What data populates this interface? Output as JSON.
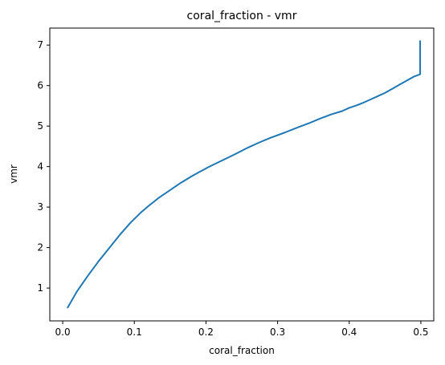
{
  "chart_data": {
    "type": "line",
    "title": "coral_fraction - vmr",
    "xlabel": "coral_fraction",
    "ylabel": "vmr",
    "xlim": [
      -0.018,
      0.518
    ],
    "ylim": [
      0.19,
      7.42
    ],
    "x_ticks": [
      0.0,
      0.1,
      0.2,
      0.3,
      0.4,
      0.5
    ],
    "x_tick_labels": [
      "0.0",
      "0.1",
      "0.2",
      "0.3",
      "0.4",
      "0.5"
    ],
    "y_ticks": [
      1,
      2,
      3,
      4,
      5,
      6,
      7
    ],
    "y_tick_labels": [
      "1",
      "2",
      "3",
      "4",
      "5",
      "6",
      "7"
    ],
    "grid": false,
    "series": [
      {
        "color": "#1f77b4",
        "x": [
          0.007,
          0.02,
          0.035,
          0.05,
          0.065,
          0.08,
          0.095,
          0.11,
          0.12,
          0.135,
          0.15,
          0.165,
          0.18,
          0.19,
          0.205,
          0.22,
          0.24,
          0.26,
          0.275,
          0.29,
          0.31,
          0.33,
          0.345,
          0.36,
          0.375,
          0.39,
          0.4,
          0.41,
          0.42,
          0.43,
          0.44,
          0.45,
          0.46,
          0.47,
          0.48,
          0.49,
          0.499,
          0.499,
          0.499,
          0.499
        ],
        "y": [
          0.52,
          0.92,
          1.3,
          1.66,
          1.99,
          2.32,
          2.62,
          2.88,
          3.03,
          3.24,
          3.42,
          3.6,
          3.76,
          3.86,
          4.0,
          4.13,
          4.3,
          4.48,
          4.6,
          4.71,
          4.84,
          4.98,
          5.08,
          5.19,
          5.29,
          5.37,
          5.45,
          5.51,
          5.58,
          5.66,
          5.74,
          5.82,
          5.92,
          6.02,
          6.12,
          6.22,
          6.28,
          6.3,
          7.1,
          7.05
        ]
      }
    ]
  }
}
